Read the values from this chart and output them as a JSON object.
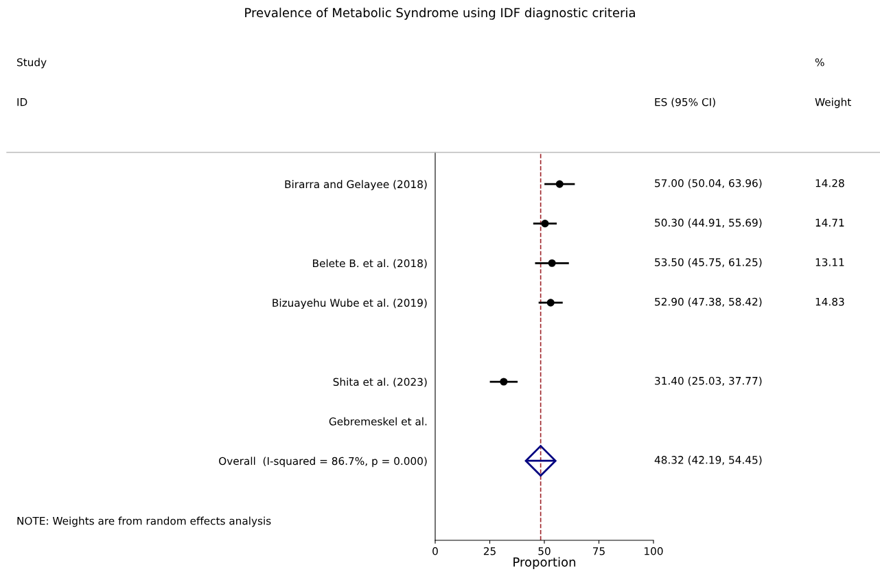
{
  "chart_data": {
    "type": "scatter",
    "orientation": "horizontal",
    "title": "Prevalence of Metabolic Syndrome using IDF diagnostic criteria",
    "xlabel": "Proportion",
    "categories": [
      "Birarra and Gelayee (2018)",
      null,
      "Belete B. et al. (2018)",
      "Bizuayehu Wube et al. (2019)",
      null,
      "Shita et al. (2023)",
      "Gebremeskel et al.",
      "Overall  (I-squared = 86.7%, p = 0.000)"
    ],
    "series": [
      {
        "marker": "circle",
        "color": "#000000",
        "values": [
          57.0,
          50.3,
          53.5,
          52.9,
          null,
          31.4,
          null,
          null
        ],
        "errors": [
          [
            50.04,
            63.96
          ],
          [
            44.91,
            55.69
          ],
          [
            45.75,
            61.25
          ],
          [
            47.38,
            58.42
          ],
          null,
          [
            25.03,
            37.77
          ],
          null,
          null
        ]
      },
      {
        "marker": "diamond",
        "color": "#000080",
        "values": [
          null,
          null,
          null,
          null,
          null,
          null,
          null,
          48.32
        ],
        "errors": [
          null,
          null,
          null,
          null,
          null,
          null,
          null,
          [
            42.19,
            54.45
          ]
        ]
      }
    ],
    "value_labels": [
      "57.00 (50.04, 63.96)",
      "50.30 (44.91, 55.69)",
      "53.50 (45.75, 61.25)",
      "52.90 (47.38, 58.42)",
      null,
      "31.40 (25.03, 37.77)",
      null,
      "48.32 (42.19, 54.45)"
    ],
    "y2_categories": [
      "14.28",
      "14.71",
      "13.11",
      "14.83",
      null,
      null,
      null,
      null
    ],
    "xlim": [
      0,
      100
    ],
    "xticks": [
      0,
      25,
      50,
      75,
      100
    ],
    "ref_lines": [
      {
        "axis": "x",
        "value": 48.32,
        "color": "#a0282d",
        "line_style": "dashed"
      }
    ],
    "annotations": [
      "Study",
      "ID",
      "ES (95% CI)",
      "%",
      "Weight",
      "NOTE: Weights are from random effects analysis"
    ],
    "grid": false
  }
}
